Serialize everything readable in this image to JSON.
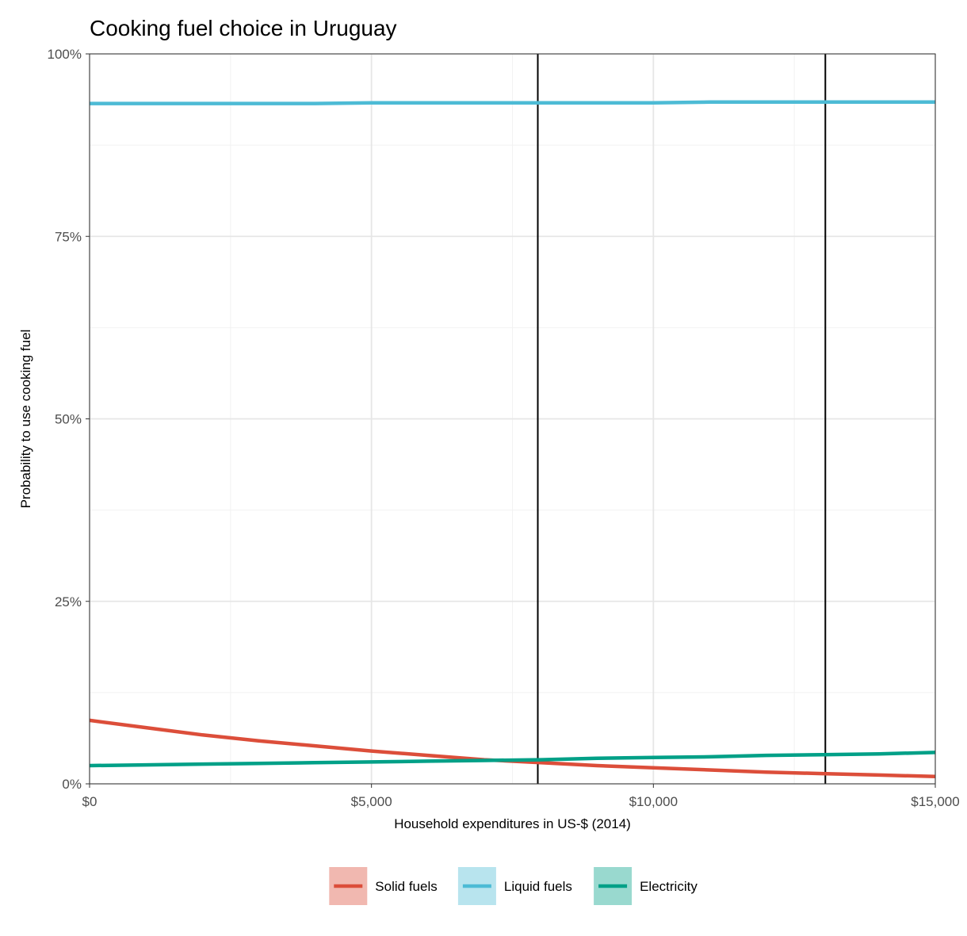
{
  "chart_data": {
    "type": "line",
    "title": "Cooking fuel choice in Uruguay",
    "xlabel": "Household expenditures in US-$ (2014)",
    "ylabel": "Probability to use cooking fuel",
    "xlim": [
      0,
      15000
    ],
    "ylim": [
      0,
      1
    ],
    "x_ticks": [
      0,
      5000,
      10000,
      15000
    ],
    "x_tick_labels": [
      "$0",
      "$5,000",
      "$10,000",
      "$15,000"
    ],
    "y_ticks": [
      0,
      0.25,
      0.5,
      0.75,
      1.0
    ],
    "y_tick_labels": [
      "0%",
      "25%",
      "50%",
      "75%",
      "100%"
    ],
    "grid": true,
    "legend_position": "bottom",
    "vertical_lines": [
      7950,
      13050
    ],
    "series": [
      {
        "name": "Solid fuels",
        "color": "#DC4E3A",
        "x": [
          0,
          1000,
          2000,
          3000,
          4000,
          5000,
          6000,
          7000,
          8000,
          9000,
          10000,
          11000,
          12000,
          13000,
          14000,
          15000
        ],
        "y": [
          0.087,
          0.077,
          0.067,
          0.059,
          0.052,
          0.045,
          0.039,
          0.033,
          0.029,
          0.025,
          0.022,
          0.019,
          0.016,
          0.014,
          0.012,
          0.01
        ]
      },
      {
        "name": "Liquid fuels",
        "color": "#4DBBD5",
        "x": [
          0,
          1000,
          2000,
          3000,
          4000,
          5000,
          6000,
          7000,
          8000,
          9000,
          10000,
          11000,
          12000,
          13000,
          14000,
          15000
        ],
        "y": [
          0.932,
          0.932,
          0.932,
          0.932,
          0.932,
          0.933,
          0.933,
          0.933,
          0.933,
          0.933,
          0.933,
          0.934,
          0.934,
          0.934,
          0.934,
          0.934
        ]
      },
      {
        "name": "Electricity",
        "color": "#00A087",
        "x": [
          0,
          1000,
          2000,
          3000,
          4000,
          5000,
          6000,
          7000,
          8000,
          9000,
          10000,
          11000,
          12000,
          13000,
          14000,
          15000
        ],
        "y": [
          0.025,
          0.026,
          0.027,
          0.028,
          0.029,
          0.03,
          0.031,
          0.032,
          0.033,
          0.035,
          0.036,
          0.037,
          0.039,
          0.04,
          0.041,
          0.043
        ]
      }
    ]
  }
}
